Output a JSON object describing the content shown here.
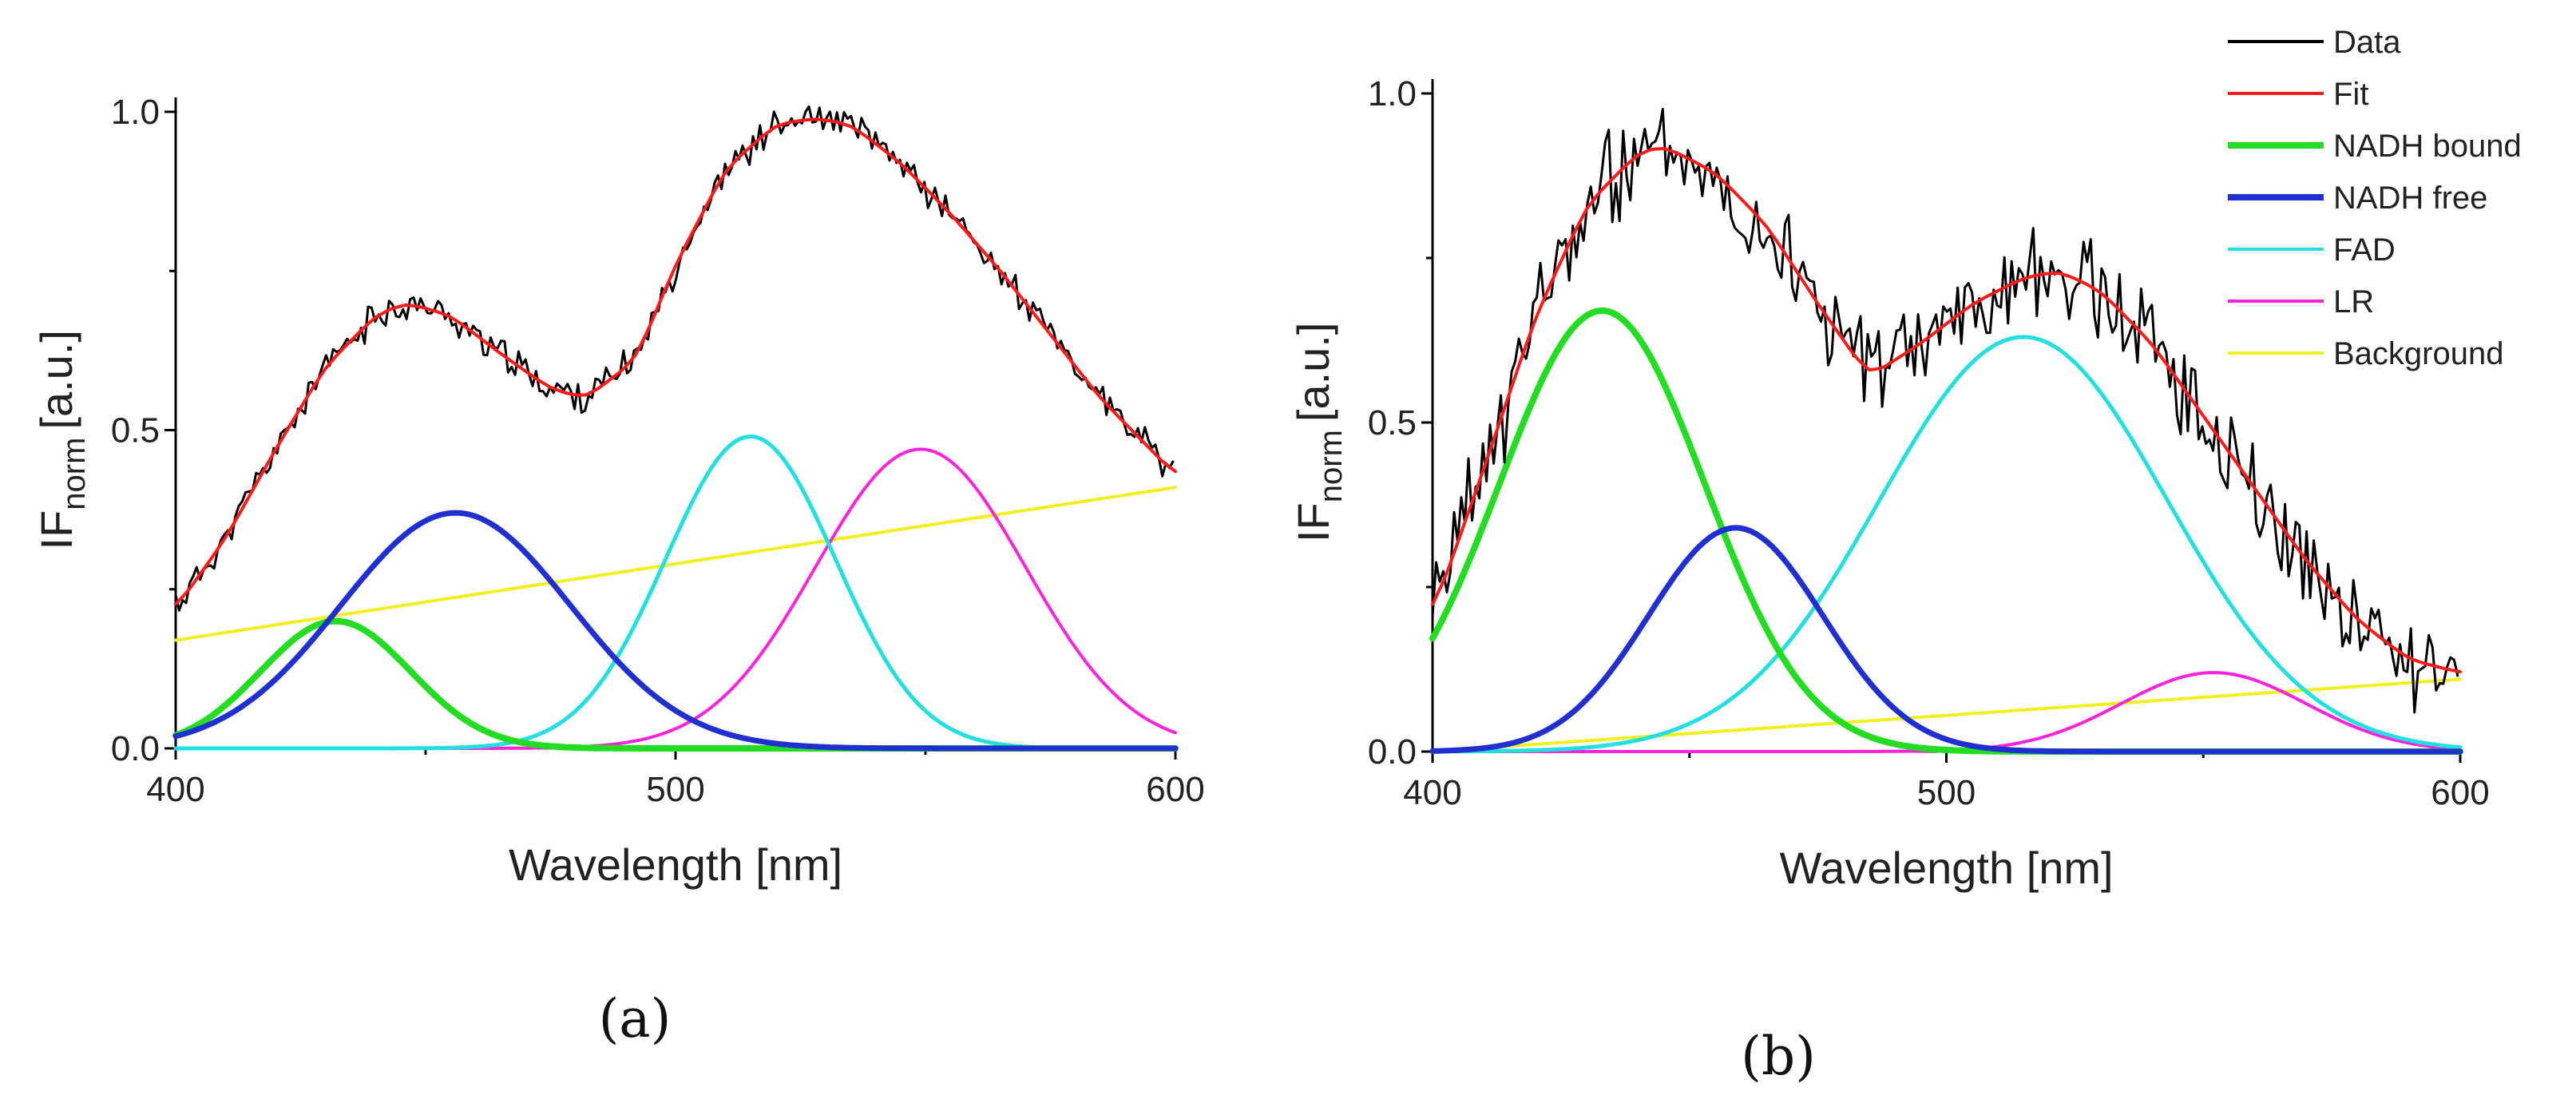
{
  "legend": [
    {
      "key": "data",
      "label": "Data",
      "color": "#000000"
    },
    {
      "key": "fit",
      "label": "Fit",
      "color": "#ff1a1a"
    },
    {
      "key": "nadh_bound",
      "label": "NADH bound",
      "color": "#22dd22"
    },
    {
      "key": "nadh_free",
      "label": "NADH free",
      "color": "#1f2fd0"
    },
    {
      "key": "fad",
      "label": "FAD",
      "color": "#22e0e0"
    },
    {
      "key": "lr",
      "label": "LR",
      "color": "#ff22dd"
    },
    {
      "key": "background",
      "label": "Background",
      "color": "#f0f020"
    }
  ],
  "chart_data": [
    {
      "panel_label": "(a)",
      "type": "line",
      "xlabel": "Wavelength [nm]",
      "ylabel_main": "IF",
      "ylabel_sub": "norm",
      "ylabel_suffix": "[a.u.]",
      "xlim": [
        400,
        600
      ],
      "ylim": [
        0,
        1
      ],
      "xticks": [
        "400",
        "500",
        "600"
      ],
      "yticks": [
        "0.0",
        "0.5",
        "1.0"
      ],
      "components": {
        "nadh_bound": {
          "amp": 0.2,
          "center": 432,
          "sigma": 15
        },
        "nadh_free": {
          "amp": 0.37,
          "center": 456,
          "sigma": 23
        },
        "fad": {
          "amp": 0.49,
          "center": 515,
          "sigma": 17
        },
        "lr": {
          "amp": 0.47,
          "center": 549,
          "sigma": 21
        },
        "background": {
          "start": 0.17,
          "end": 0.41
        }
      },
      "fit_points": [
        [
          400,
          0.22
        ],
        [
          410,
          0.33
        ],
        [
          420,
          0.47
        ],
        [
          430,
          0.6
        ],
        [
          440,
          0.68
        ],
        [
          446,
          0.7
        ],
        [
          455,
          0.68
        ],
        [
          465,
          0.62
        ],
        [
          475,
          0.565
        ],
        [
          482,
          0.55
        ],
        [
          492,
          0.61
        ],
        [
          500,
          0.76
        ],
        [
          510,
          0.91
        ],
        [
          520,
          0.98
        ],
        [
          528,
          0.99
        ],
        [
          535,
          0.98
        ],
        [
          545,
          0.92
        ],
        [
          555,
          0.84
        ],
        [
          565,
          0.75
        ],
        [
          575,
          0.65
        ],
        [
          585,
          0.55
        ],
        [
          595,
          0.47
        ],
        [
          600,
          0.43
        ]
      ],
      "noise_amplitude": 0.02
    },
    {
      "panel_label": "(b)",
      "type": "line",
      "xlabel": "Wavelength [nm]",
      "ylabel_main": "IF",
      "ylabel_sub": "norm",
      "ylabel_suffix": "[a.u.]",
      "xlim": [
        400,
        600
      ],
      "ylim": [
        0,
        1
      ],
      "xticks": [
        "400",
        "500",
        "600"
      ],
      "yticks": [
        "0.0",
        "0.5",
        "1.0"
      ],
      "components": {
        "nadh_bound": {
          "amp": 0.67,
          "center": 433,
          "sigma": 20
        },
        "nadh_free": {
          "amp": 0.34,
          "center": 459,
          "sigma": 17
        },
        "fad": {
          "amp": 0.63,
          "center": 515,
          "sigma": 28
        },
        "lr": {
          "amp": 0.12,
          "center": 552,
          "sigma": 18
        },
        "background": {
          "start": 0.0,
          "end": 0.11
        }
      },
      "fit_points": [
        [
          400,
          0.21
        ],
        [
          410,
          0.43
        ],
        [
          420,
          0.66
        ],
        [
          430,
          0.83
        ],
        [
          440,
          0.91
        ],
        [
          445,
          0.92
        ],
        [
          455,
          0.88
        ],
        [
          465,
          0.8
        ],
        [
          475,
          0.68
        ],
        [
          485,
          0.57
        ],
        [
          495,
          0.62
        ],
        [
          505,
          0.68
        ],
        [
          515,
          0.72
        ],
        [
          522,
          0.73
        ],
        [
          530,
          0.7
        ],
        [
          540,
          0.62
        ],
        [
          550,
          0.51
        ],
        [
          560,
          0.4
        ],
        [
          570,
          0.29
        ],
        [
          580,
          0.2
        ],
        [
          590,
          0.14
        ],
        [
          600,
          0.12
        ]
      ],
      "noise_amplitude": 0.06
    }
  ]
}
